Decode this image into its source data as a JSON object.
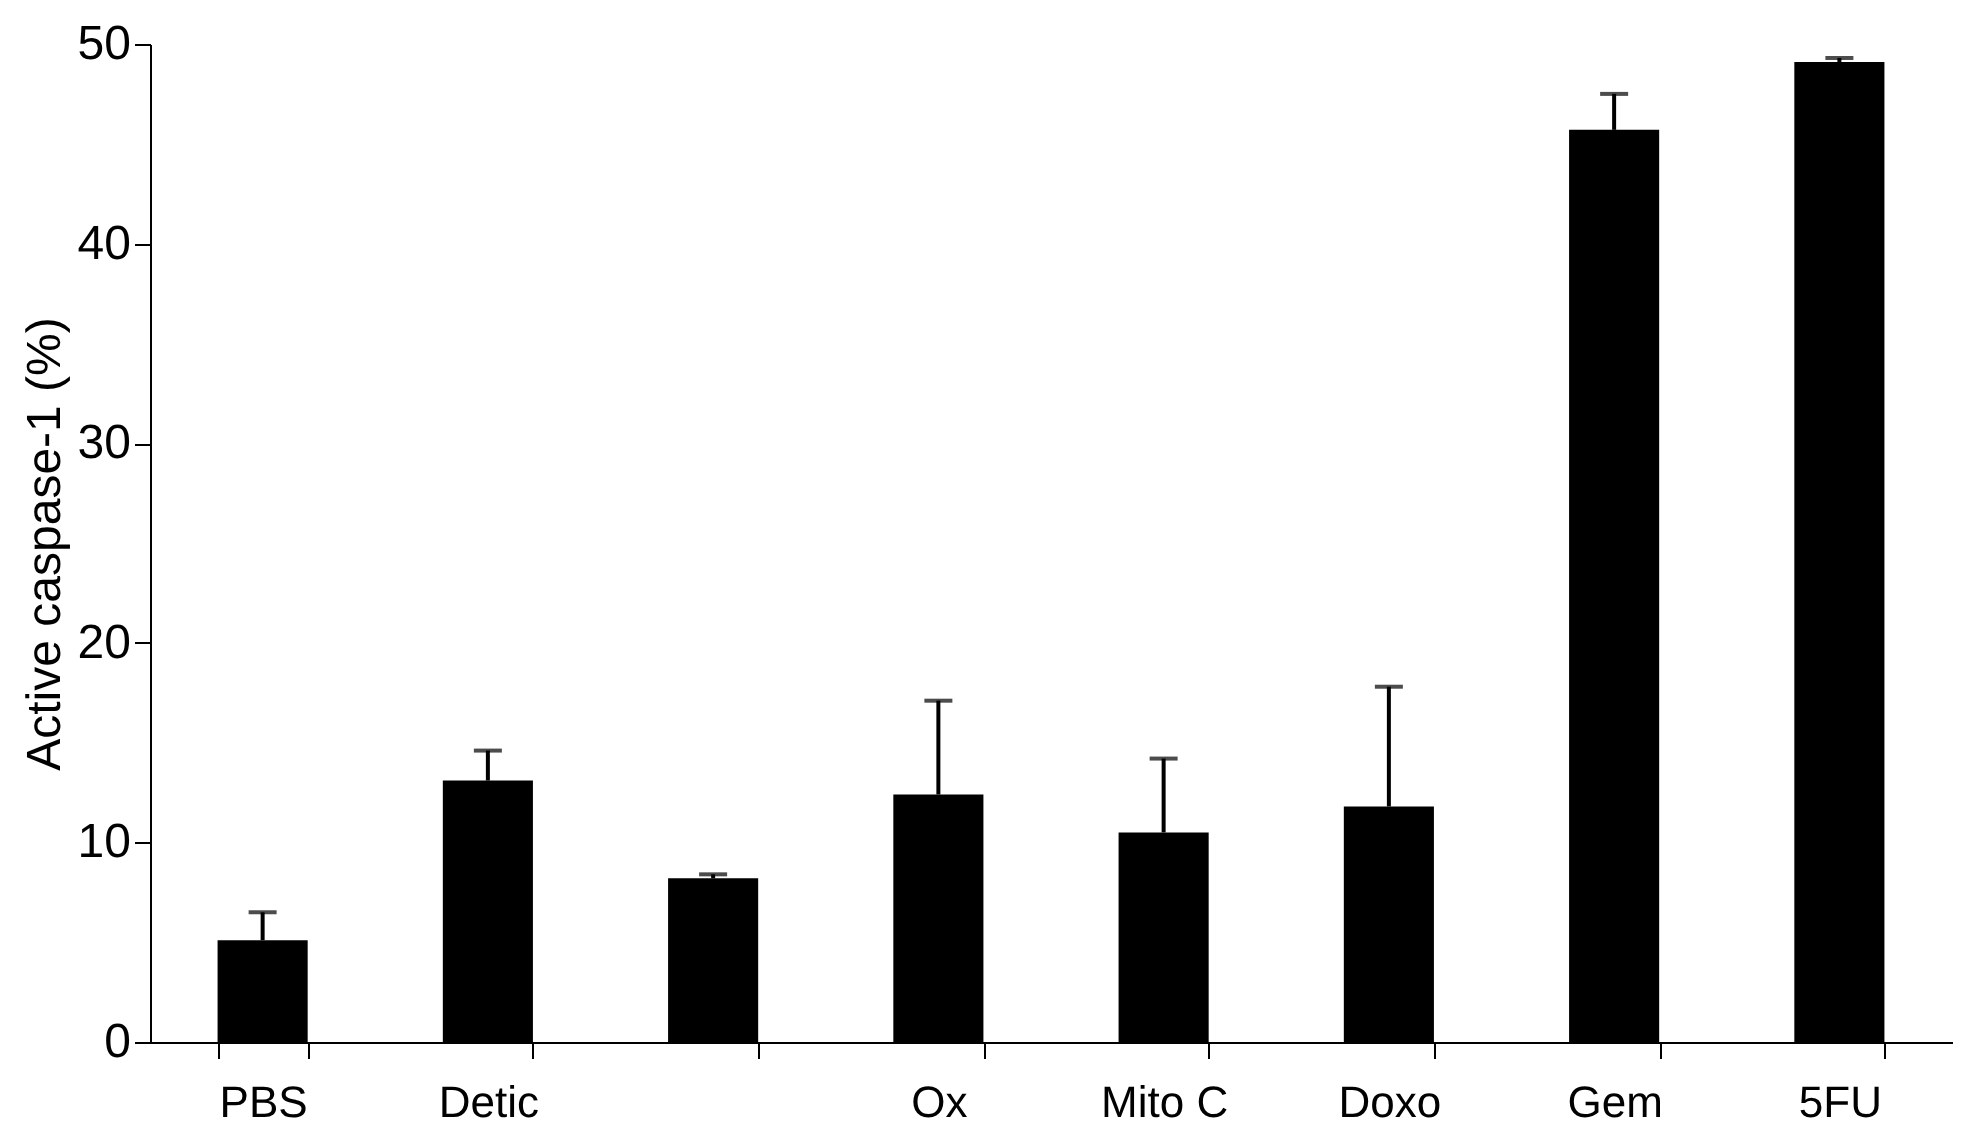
{
  "chart_data": {
    "type": "bar",
    "ylabel": "Active caspase-1 (%)",
    "categories": [
      "PBS",
      "Detic",
      null,
      "Ox",
      "Mito C",
      "Doxo",
      "Gem",
      "5FU"
    ],
    "values": [
      5.1,
      13.1,
      8.2,
      12.4,
      10.5,
      11.8,
      45.7,
      49.1
    ],
    "errors": [
      [
        5.1,
        6.5
      ],
      [
        13.1,
        14.6
      ],
      [
        8.2,
        8.4
      ],
      [
        12.4,
        17.1
      ],
      [
        10.5,
        14.2
      ],
      [
        11.8,
        17.8
      ],
      [
        45.7,
        47.5
      ],
      [
        49.1,
        49.3
      ]
    ],
    "color": "#000000",
    "ylim": [
      0,
      50
    ],
    "yticks": [
      0,
      10,
      20,
      30,
      40,
      50
    ],
    "grid": false
  }
}
